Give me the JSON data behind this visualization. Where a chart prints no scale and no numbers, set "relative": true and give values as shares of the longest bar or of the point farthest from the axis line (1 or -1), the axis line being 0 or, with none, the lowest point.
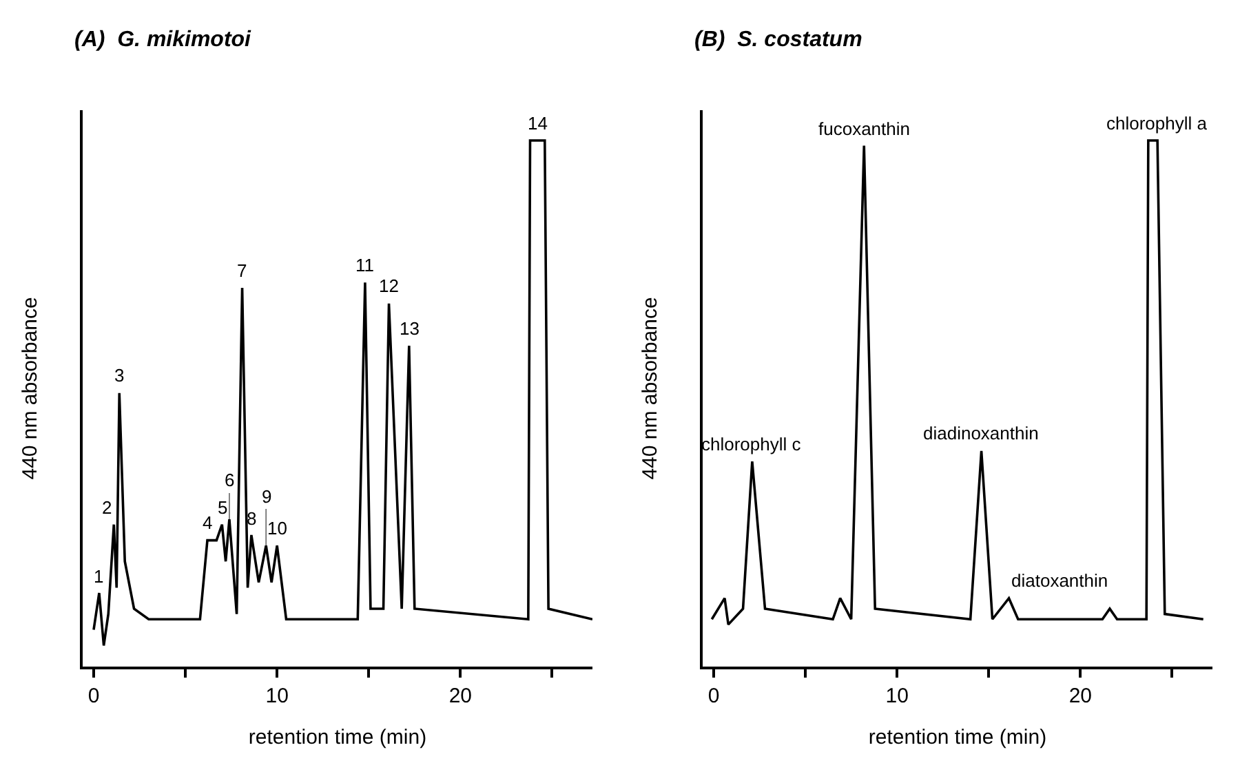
{
  "chart_data": [
    {
      "type": "line",
      "title": "(A)  G. mikimotoi",
      "xlabel": "retention time (min)",
      "ylabel": "440 nm absorbance",
      "relative": true,
      "grid": false,
      "xlim": [
        -0.6,
        27.2
      ],
      "xticks": [
        0,
        {
          "value": 5,
          "label": null
        },
        10,
        {
          "value": 15,
          "label": null
        },
        20,
        {
          "value": 25,
          "label": null
        }
      ],
      "series": [
        {
          "color": "#000000",
          "x": [
            0,
            0.3,
            0.55,
            0.8,
            1.1,
            1.25,
            1.4,
            1.7,
            2.2,
            3.0,
            5.8,
            6.2,
            6.7,
            7.0,
            7.2,
            7.4,
            7.8,
            8.1,
            8.4,
            8.6,
            9.0,
            9.4,
            9.7,
            10.0,
            10.5,
            14.4,
            14.8,
            15.1,
            15.8,
            16.1,
            16.8,
            17.2,
            17.5,
            23.7,
            23.8,
            24.6,
            24.8,
            27.2
          ],
          "values": [
            0.07,
            0.14,
            0.04,
            0.1,
            0.27,
            0.15,
            0.52,
            0.2,
            0.11,
            0.09,
            0.09,
            0.24,
            0.24,
            0.27,
            0.2,
            0.28,
            0.1,
            0.72,
            0.15,
            0.25,
            0.16,
            0.23,
            0.16,
            0.23,
            0.09,
            0.09,
            0.73,
            0.11,
            0.11,
            0.69,
            0.11,
            0.61,
            0.11,
            0.09,
            1.0,
            1.0,
            0.11,
            0.09
          ]
        }
      ],
      "annotations": [
        {
          "text": "1",
          "x": 0.3,
          "y": 0.14
        },
        {
          "text": "2",
          "x": 1.1,
          "y": 0.27
        },
        {
          "text": "3",
          "x": 1.4,
          "y": 0.52
        },
        {
          "text": "4",
          "x": 6.2,
          "y": 0.24
        },
        {
          "text": "5",
          "x": 7.0,
          "y": 0.27
        },
        {
          "text": "6",
          "x": 7.4,
          "y": 0.28
        },
        {
          "text": "7",
          "x": 8.1,
          "y": 0.72
        },
        {
          "text": "8",
          "x": 8.6,
          "y": 0.25
        },
        {
          "text": "9",
          "x": 9.4,
          "y": 0.23
        },
        {
          "text": "10",
          "x": 10.0,
          "y": 0.23
        },
        {
          "text": "11",
          "x": 14.8,
          "y": 0.73
        },
        {
          "text": "12",
          "x": 16.1,
          "y": 0.69
        },
        {
          "text": "13",
          "x": 17.2,
          "y": 0.61
        },
        {
          "text": "14",
          "x": 24.2,
          "y": 1.0
        }
      ]
    },
    {
      "type": "line",
      "title": "(B)  S. costatum",
      "xlabel": "retention time (min)",
      "ylabel": "440 nm absorbance",
      "relative": true,
      "grid": false,
      "xlim": [
        -0.6,
        27.2
      ],
      "xticks": [
        0,
        {
          "value": 5,
          "label": null
        },
        10,
        {
          "value": 15,
          "label": null
        },
        20,
        {
          "value": 25,
          "label": null
        }
      ],
      "series": [
        {
          "color": "#000000",
          "x": [
            -0.1,
            0.6,
            0.8,
            1.6,
            2.1,
            2.8,
            6.5,
            6.9,
            7.5,
            8.2,
            8.8,
            14.0,
            14.6,
            15.2,
            16.1,
            16.6,
            21.2,
            21.6,
            22.0,
            23.6,
            23.7,
            24.2,
            24.6,
            26.7
          ],
          "values": [
            0.09,
            0.13,
            0.08,
            0.11,
            0.39,
            0.11,
            0.09,
            0.13,
            0.09,
            0.99,
            0.11,
            0.09,
            0.41,
            0.09,
            0.13,
            0.09,
            0.09,
            0.11,
            0.09,
            0.09,
            1.0,
            1.0,
            0.1,
            0.09
          ]
        }
      ],
      "annotations": [
        {
          "text": "chlorophyll c",
          "x": 2.1,
          "y": 0.39
        },
        {
          "text": "fucoxanthin",
          "x": 8.2,
          "y": 0.99
        },
        {
          "text": "diadinoxanthin",
          "x": 14.6,
          "y": 0.41
        },
        {
          "text": "diatoxanthin",
          "x": 16.1,
          "y": 0.13
        },
        {
          "text": "chlorophyll a",
          "x": 24.2,
          "y": 1.0
        }
      ]
    }
  ]
}
